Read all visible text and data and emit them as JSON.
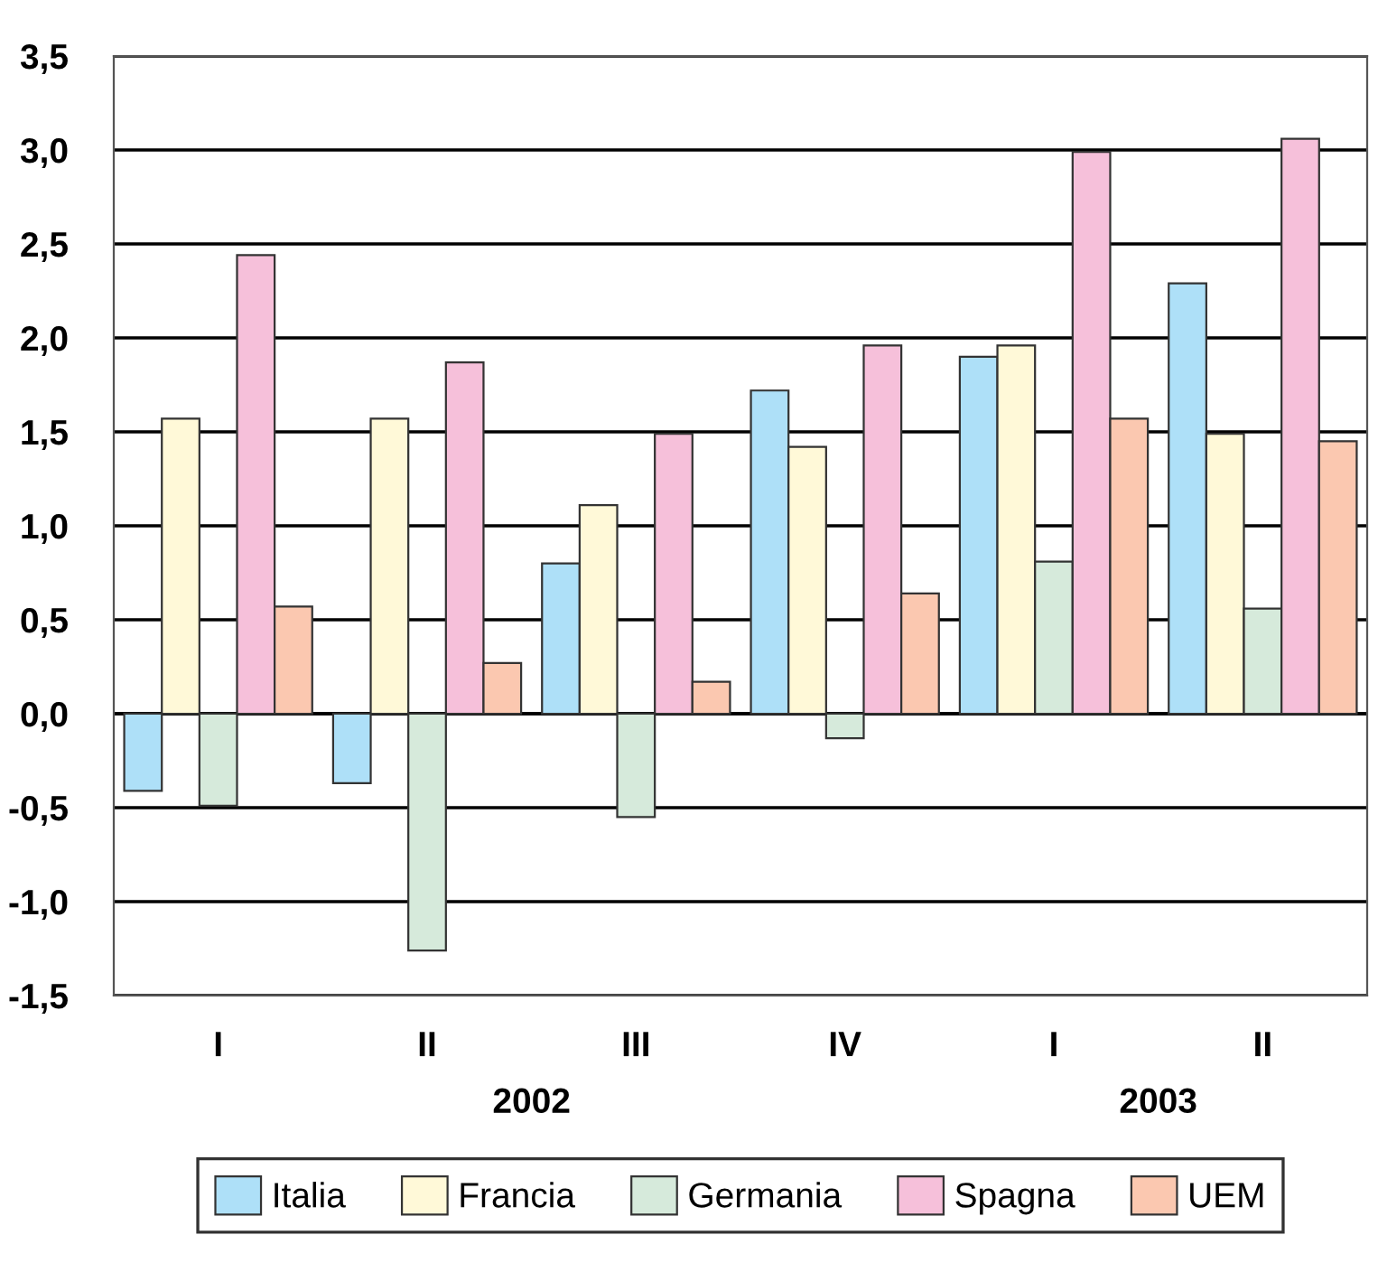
{
  "chart_data": {
    "type": "bar",
    "categories": [
      "I",
      "II",
      "III",
      "IV",
      "I",
      "II"
    ],
    "series": [
      {
        "name": "Italia",
        "color": "#aee0f8",
        "values": [
          -0.41,
          -0.37,
          0.8,
          1.72,
          1.9,
          2.29
        ]
      },
      {
        "name": "Francia",
        "color": "#fff9d8",
        "values": [
          1.57,
          1.57,
          1.11,
          1.42,
          1.96,
          1.49
        ]
      },
      {
        "name": "Germania",
        "color": "#d6eadb",
        "values": [
          -0.49,
          -1.26,
          -0.55,
          -0.13,
          0.81,
          0.56
        ]
      },
      {
        "name": "Spagna",
        "color": "#f6c0da",
        "values": [
          2.44,
          1.87,
          1.49,
          1.96,
          2.99,
          3.06
        ]
      },
      {
        "name": "UEM",
        "color": "#fbc8b0",
        "values": [
          0.57,
          0.27,
          0.17,
          0.64,
          1.57,
          1.45
        ]
      }
    ],
    "annotations": [
      "2002",
      "2003"
    ],
    "ylim": [
      -1.5,
      3.5
    ],
    "yticks": [
      {
        "value": -1.5,
        "label": "-1,5"
      },
      {
        "value": -1.0,
        "label": "-1,0"
      },
      {
        "value": -0.5,
        "label": "-0,5"
      },
      {
        "value": 0,
        "label": "0,0"
      },
      {
        "value": 0.5,
        "label": "0,5"
      },
      {
        "value": 1.0,
        "label": "1,0"
      },
      {
        "value": 1.5,
        "label": "1,5"
      },
      {
        "value": 2.0,
        "label": "2,0"
      },
      {
        "value": 2.5,
        "label": "2,5"
      },
      {
        "value": 3.0,
        "label": "3,0"
      },
      {
        "value": 3.5,
        "label": "3,5"
      }
    ],
    "grid": "y",
    "legend": "bottom"
  }
}
